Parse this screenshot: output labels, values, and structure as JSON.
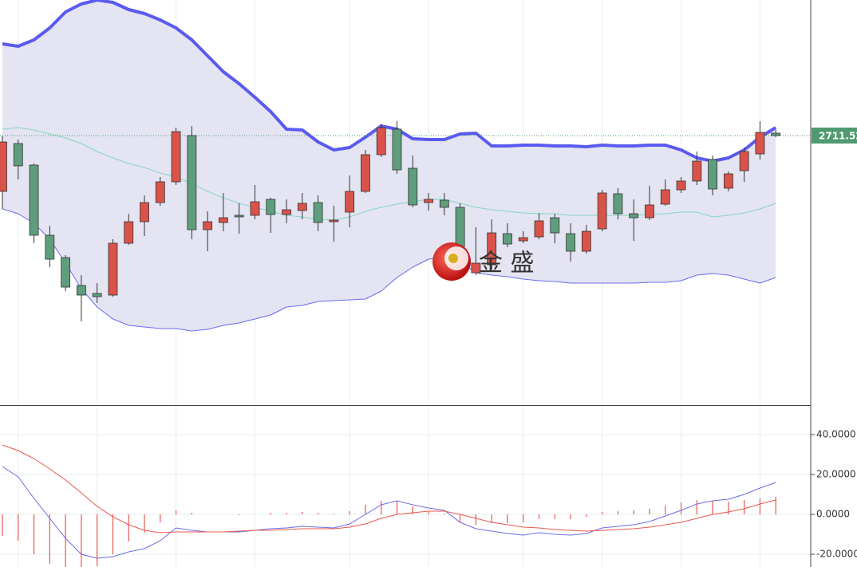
{
  "chart_data": [
    {
      "type": "candlestick",
      "open": [
        2676.5,
        2706.5,
        2693,
        2649,
        2635,
        2617.5,
        2612.5,
        2611.5,
        2644,
        2657.5,
        2669.5,
        2682.5,
        2711.5,
        2652.5,
        2657,
        2661.5,
        2661.5,
        2671.5,
        2662,
        2664.5,
        2669.5,
        2657.5,
        2663.5,
        2676.5,
        2699.5,
        2715.5,
        2691,
        2669.5,
        2671,
        2666.5,
        2625.5,
        2630.5,
        2650,
        2645.5,
        2648,
        2660,
        2650,
        2639,
        2653,
        2675,
        2662.5,
        2660,
        2668.5,
        2677.5,
        2683,
        2696.5,
        2678.5,
        2689.5,
        2700,
        2713
      ],
      "high": [
        2711.5,
        2709,
        2694,
        2655,
        2636.5,
        2624,
        2619,
        2646.5,
        2662.5,
        2674,
        2685.5,
        2716.5,
        2717.5,
        2664,
        2675.5,
        2669,
        2680.5,
        2672.5,
        2671.5,
        2675.5,
        2674,
        2667.5,
        2686.5,
        2702.5,
        2719,
        2720.5,
        2699,
        2675.5,
        2675.5,
        2669,
        2654,
        2659,
        2656.5,
        2651.5,
        2663,
        2662.5,
        2656.5,
        2655.5,
        2677.5,
        2678.5,
        2671.5,
        2680,
        2684,
        2685.5,
        2701.5,
        2699,
        2689,
        2704,
        2720.5,
        2715
      ],
      "low": [
        2665.5,
        2684,
        2644,
        2629,
        2614,
        2595,
        2606.5,
        2610.5,
        2643,
        2648.5,
        2667.5,
        2680.5,
        2646.5,
        2639,
        2651.5,
        2650,
        2659,
        2650.5,
        2656.5,
        2659,
        2651.5,
        2645,
        2654,
        2675.5,
        2698,
        2687.5,
        2666.5,
        2664.5,
        2661.5,
        2624,
        2624,
        2627.5,
        2641.5,
        2644,
        2646.5,
        2644,
        2632.5,
        2637.5,
        2651.5,
        2659,
        2645.5,
        2658.5,
        2667.5,
        2675.5,
        2680.5,
        2674,
        2676.5,
        2682.5,
        2696.5,
        2710.5
      ],
      "close": [
        2707.5,
        2692.5,
        2649,
        2634,
        2616.5,
        2611.5,
        2610.5,
        2644,
        2657.5,
        2669.5,
        2682.5,
        2714,
        2652.5,
        2657.5,
        2660,
        2660.5,
        2670,
        2662,
        2665,
        2669,
        2657,
        2658.5,
        2676.5,
        2699.5,
        2716.5,
        2690,
        2668,
        2671.5,
        2666.5,
        2627.5,
        2631.5,
        2650.5,
        2643.5,
        2647.5,
        2658,
        2650.5,
        2639,
        2651.5,
        2675.5,
        2662.5,
        2660,
        2668,
        2677.5,
        2683,
        2695.5,
        2678,
        2687.5,
        2701.5,
        2713.5,
        2711.52
      ],
      "up_color": "#d9534a",
      "down_color": "#5f9e7c",
      "ylim": [
        2542.5,
        2796.5
      ],
      "last_price": 2711.52,
      "last_price_color": "#4f9a70",
      "band_fill": "#e4e4f2",
      "overlays": [
        {
          "color": "#5a5af0",
          "values": [
            2769,
            2767.5,
            2771.5,
            2779,
            2789,
            2794,
            2796.5,
            2795,
            2790.5,
            2788,
            2784,
            2779,
            2771.5,
            2761.5,
            2751.5,
            2744,
            2735.5,
            2726.5,
            2715.5,
            2715,
            2707.5,
            2702.5,
            2704,
            2710.5,
            2717.5,
            2715.5,
            2709.5,
            2709,
            2709,
            2712.5,
            2713,
            2705,
            2705,
            2705.5,
            2705.5,
            2705,
            2705,
            2704.5,
            2705.5,
            2705,
            2705,
            2705.5,
            2705.5,
            2702.5,
            2697.5,
            2695.5,
            2697.5,
            2702.5,
            2710.5,
            2716.5
          ]
        },
        {
          "color": "#86d6c2",
          "values": [
            2715.5,
            2716.5,
            2715,
            2712.5,
            2710,
            2706.5,
            2701.5,
            2697.5,
            2694,
            2691.5,
            2688,
            2685.5,
            2681.5,
            2676.5,
            2672.5,
            2669,
            2666.5,
            2664,
            2661.5,
            2660.5,
            2659,
            2658.5,
            2660.5,
            2664,
            2666.5,
            2668.5,
            2670,
            2671.5,
            2671.5,
            2669,
            2666.5,
            2665,
            2664,
            2663,
            2662.5,
            2662.5,
            2661.5,
            2661.5,
            2661.5,
            2661.5,
            2661.5,
            2662,
            2662.5,
            2663.5,
            2663.5,
            2660.5,
            2661.5,
            2663,
            2665.5,
            2669
          ]
        },
        {
          "color": "#6b6bf0",
          "values": [
            2665.5,
            2662.5,
            2656.5,
            2646.5,
            2631.5,
            2615.5,
            2604,
            2596.5,
            2592.5,
            2591.5,
            2590.5,
            2590.5,
            2589,
            2590,
            2592.5,
            2594,
            2596.5,
            2599,
            2604,
            2605,
            2607.5,
            2608,
            2608.5,
            2609,
            2614,
            2622.5,
            2629,
            2634,
            2635.5,
            2632.5,
            2625.5,
            2624,
            2623,
            2621.5,
            2620.5,
            2620,
            2619,
            2619,
            2619,
            2619,
            2619,
            2619.5,
            2619.5,
            2620.5,
            2624,
            2625,
            2624,
            2621.5,
            2619,
            2622.5
          ]
        }
      ],
      "watermark": "金 盛"
    },
    {
      "type": "line",
      "ylim": [
        -26.4,
        54
      ],
      "yticks": [
        {
          "value": 40,
          "label": "40.0000"
        },
        {
          "value": 20,
          "label": "20.0000"
        },
        {
          "value": 0,
          "label": "0.0000"
        },
        {
          "value": -20,
          "label": "-20.0000"
        }
      ],
      "grid": true,
      "series": [
        {
          "color": "#6b6be8",
          "values": [
            24,
            18.8,
            8,
            -2,
            -12,
            -20,
            -22,
            -21.2,
            -18.8,
            -17.2,
            -13.2,
            -6.8,
            -8,
            -8.8,
            -8.8,
            -8.8,
            -8,
            -7.2,
            -6.8,
            -6,
            -6.4,
            -6.8,
            -4.8,
            0,
            4.8,
            6.8,
            4.8,
            3.2,
            2,
            -4,
            -7.2,
            -8.4,
            -9.6,
            -10.4,
            -9.2,
            -10,
            -10.4,
            -9.6,
            -6.8,
            -6,
            -5.2,
            -3.6,
            -0.8,
            2,
            5.2,
            6.8,
            7.6,
            10,
            13.2,
            16
          ]
        },
        {
          "color": "#e8574e",
          "values": [
            34.8,
            32,
            28,
            22.8,
            17.2,
            10.8,
            4,
            -1.2,
            -5.2,
            -8,
            -9.2,
            -8.8,
            -8.8,
            -8.8,
            -8.8,
            -8.4,
            -8,
            -8,
            -7.6,
            -7.2,
            -7.2,
            -7.2,
            -6.4,
            -4.8,
            -2,
            0,
            0.8,
            1.6,
            1.6,
            0,
            -2,
            -4,
            -5.2,
            -6.4,
            -6.8,
            -7.6,
            -8,
            -8.4,
            -8,
            -7.6,
            -7.2,
            -6.4,
            -5.2,
            -4,
            -2,
            0,
            1.2,
            2.8,
            5.2,
            7.2
          ]
        },
        {
          "type": "bar",
          "color": "#e8574e",
          "values": [
            -10.8,
            -13.2,
            -20,
            -24.8,
            -29.2,
            -30.8,
            -26,
            -20,
            -13.6,
            -9.2,
            -4,
            2,
            0.8,
            0,
            0,
            -0.4,
            0,
            0.8,
            0.8,
            1.2,
            0.8,
            0.4,
            1.6,
            4.8,
            6.8,
            6.8,
            4,
            1.6,
            0.4,
            -4,
            -5.2,
            -4.4,
            -4.4,
            -4,
            -2.4,
            -2.4,
            -2.4,
            -1.2,
            1.2,
            1.6,
            2,
            2.8,
            4.4,
            6,
            7.2,
            6.8,
            6.4,
            7.2,
            8,
            8.8
          ]
        }
      ]
    }
  ]
}
